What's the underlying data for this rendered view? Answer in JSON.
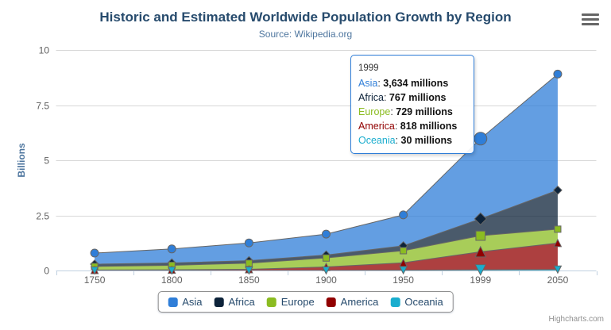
{
  "title": "Historic and Estimated Worldwide Population Growth by Region",
  "subtitle": "Source: Wikipedia.org",
  "credits": "Highcharts.com",
  "chart_data": {
    "type": "area",
    "stacking": "normal",
    "title": "Historic and Estimated Worldwide Population Growth by Region",
    "subtitle": "Source: Wikipedia.org",
    "categories": [
      "1750",
      "1800",
      "1850",
      "1900",
      "1950",
      "1999",
      "2050"
    ],
    "series": [
      {
        "name": "Asia",
        "color": "#2f7ed8",
        "marker": "circle",
        "values": [
          502,
          635,
          809,
          947,
          1402,
          3634,
          5268
        ]
      },
      {
        "name": "Africa",
        "color": "#0d233a",
        "marker": "diamond",
        "values": [
          106,
          107,
          111,
          133,
          221,
          767,
          1766
        ]
      },
      {
        "name": "Europe",
        "color": "#8bbc21",
        "marker": "square",
        "values": [
          163,
          203,
          276,
          408,
          547,
          729,
          628
        ]
      },
      {
        "name": "America",
        "color": "#910000",
        "marker": "triangle",
        "values": [
          18,
          31,
          54,
          156,
          339,
          818,
          1201
        ]
      },
      {
        "name": "Oceania",
        "color": "#1aadce",
        "marker": "triangle-down",
        "values": [
          2,
          2,
          2,
          6,
          13,
          30,
          46
        ]
      }
    ],
    "units": "millions",
    "xlabel": "",
    "ylabel": "Billions",
    "ylim": [
      0,
      10
    ],
    "yticks": [
      "0",
      "2.5",
      "5",
      "7.5",
      "10"
    ],
    "grid": "horizontal",
    "legend_position": "bottom",
    "hover_category": "1999",
    "line_color": "#666666",
    "fill_opacity": 0.75
  },
  "tooltip": {
    "header": "1999",
    "rows": [
      {
        "name": "Asia",
        "value": "3,634 millions"
      },
      {
        "name": "Africa",
        "value": "767 millions"
      },
      {
        "name": "Europe",
        "value": "729 millions"
      },
      {
        "name": "America",
        "value": "818 millions"
      },
      {
        "name": "Oceania",
        "value": "30 millions"
      }
    ]
  }
}
